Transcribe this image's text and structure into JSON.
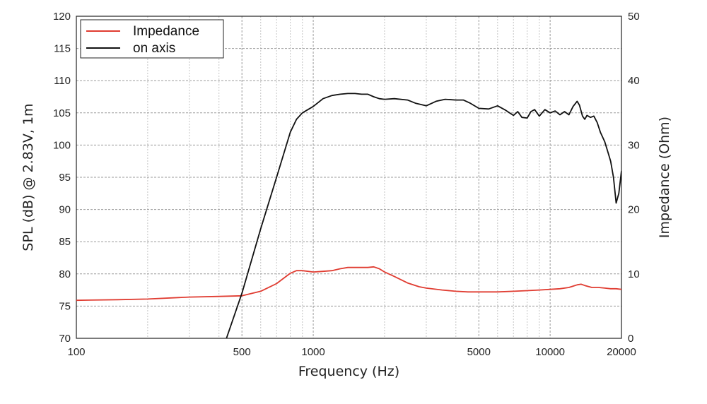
{
  "chart_data": {
    "type": "line",
    "xlabel": "Frequency (Hz)",
    "ylabel": "SPL (dB) @ 2.83V, 1m",
    "y2label": "Impedance (Ohm)",
    "xscale": "log",
    "xlim": [
      100,
      20000
    ],
    "ylim": [
      70,
      120
    ],
    "y2lim": [
      0,
      50
    ],
    "grid": true,
    "legend_position": "top-left",
    "x_tick_labels": [
      "100",
      "500",
      "1000",
      "5000",
      "10000",
      "20000"
    ],
    "y_tick_labels": [
      "70",
      "75",
      "80",
      "85",
      "90",
      "95",
      "100",
      "105",
      "110",
      "115",
      "120"
    ],
    "y2_tick_labels": [
      "0",
      "10",
      "20",
      "30",
      "40",
      "50"
    ],
    "series": [
      {
        "name": "Impedance",
        "axis": "right",
        "color": "#e03c31",
        "x": [
          100,
          150,
          200,
          300,
          400,
          500,
          600,
          700,
          800,
          850,
          900,
          1000,
          1100,
          1200,
          1300,
          1400,
          1500,
          1600,
          1700,
          1800,
          1900,
          2000,
          2200,
          2500,
          2800,
          3000,
          3500,
          4000,
          4500,
          5000,
          6000,
          7000,
          8000,
          9000,
          10000,
          11000,
          12000,
          12500,
          13000,
          13500,
          14000,
          15000,
          16000,
          17000,
          18000,
          19000,
          20000
        ],
        "y": [
          5.9,
          6.0,
          6.1,
          6.4,
          6.5,
          6.6,
          7.3,
          8.5,
          10.1,
          10.5,
          10.5,
          10.3,
          10.4,
          10.5,
          10.8,
          11.0,
          11.0,
          11.0,
          11.0,
          11.1,
          10.8,
          10.3,
          9.6,
          8.6,
          8.0,
          7.8,
          7.5,
          7.3,
          7.2,
          7.2,
          7.2,
          7.3,
          7.4,
          7.5,
          7.6,
          7.7,
          7.9,
          8.1,
          8.3,
          8.4,
          8.2,
          7.9,
          7.9,
          7.8,
          7.7,
          7.7,
          7.6
        ]
      },
      {
        "name": "on axis",
        "axis": "left",
        "color": "#111111",
        "x": [
          430,
          500,
          600,
          700,
          800,
          850,
          900,
          1000,
          1100,
          1200,
          1300,
          1400,
          1500,
          1600,
          1700,
          1800,
          1900,
          2000,
          2200,
          2500,
          2700,
          3000,
          3300,
          3600,
          4000,
          4300,
          4600,
          5000,
          5500,
          6000,
          6500,
          7000,
          7300,
          7600,
          8000,
          8300,
          8600,
          9000,
          9500,
          10000,
          10500,
          11000,
          11500,
          12000,
          12500,
          13000,
          13300,
          13700,
          14000,
          14300,
          14800,
          15300,
          15800,
          16300,
          17000,
          17500,
          18000,
          18500,
          19000,
          19500,
          20000
        ],
        "y": [
          70,
          77,
          87,
          95,
          102,
          104,
          105,
          106,
          107.2,
          107.7,
          107.9,
          108.0,
          108.0,
          107.9,
          107.9,
          107.5,
          107.2,
          107.1,
          107.2,
          107.0,
          106.5,
          106.1,
          106.8,
          107.1,
          107.0,
          107.0,
          106.5,
          105.7,
          105.6,
          106.1,
          105.4,
          104.6,
          105.2,
          104.3,
          104.2,
          105.2,
          105.5,
          104.5,
          105.5,
          105.0,
          105.3,
          104.7,
          105.2,
          104.7,
          106.0,
          106.8,
          106.2,
          104.5,
          104.0,
          104.6,
          104.3,
          104.5,
          103.5,
          102.0,
          100.5,
          99.0,
          97.5,
          95.0,
          91.0,
          92.5,
          96.0
        ]
      }
    ]
  }
}
